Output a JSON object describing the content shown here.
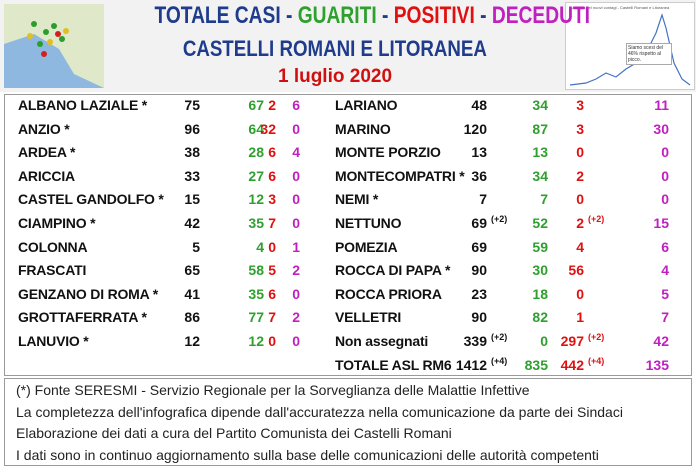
{
  "header": {
    "title_parts": [
      "TOTALE CASI",
      " - ",
      "GUARITI",
      " - ",
      "POSITIVI",
      " - ",
      "DECEDUTI"
    ],
    "subtitle": "CASTELLI ROMANI E LITORANEA",
    "date": "1 luglio 2020",
    "thumbnail_title": "La curva dei nuovi contagi - Castelli Romani e Litoranea",
    "thumbnail_note": "Siamo scesi del 46% rispetto al picco."
  },
  "table": {
    "left": [
      {
        "name": "ALBANO LAZIALE *",
        "totale": 75,
        "guariti": 67,
        "positivi": 2,
        "deceduti": 6
      },
      {
        "name": "ANZIO *",
        "totale": 96,
        "guariti": 64,
        "positivi": 32,
        "deceduti": 0
      },
      {
        "name": "ARDEA *",
        "totale": 38,
        "guariti": 28,
        "positivi": 6,
        "deceduti": 4
      },
      {
        "name": "ARICCIA",
        "totale": 33,
        "guariti": 27,
        "positivi": 6,
        "deceduti": 0
      },
      {
        "name": "CASTEL GANDOLFO *",
        "totale": 15,
        "guariti": 12,
        "positivi": 3,
        "deceduti": 0
      },
      {
        "name": "CIAMPINO *",
        "totale": 42,
        "guariti": 35,
        "positivi": 7,
        "deceduti": 0
      },
      {
        "name": "COLONNA",
        "totale": 5,
        "guariti": 4,
        "positivi": 0,
        "deceduti": 1
      },
      {
        "name": "FRASCATI",
        "totale": 65,
        "guariti": 58,
        "positivi": 5,
        "deceduti": 2
      },
      {
        "name": "GENZANO DI ROMA *",
        "totale": 41,
        "guariti": 35,
        "positivi": 6,
        "deceduti": 0
      },
      {
        "name": "GROTTAFERRATA *",
        "totale": 86,
        "guariti": 77,
        "positivi": 7,
        "deceduti": 2
      },
      {
        "name": "LANUVIO *",
        "totale": 12,
        "guariti": 12,
        "positivi": 0,
        "deceduti": 0
      }
    ],
    "right": [
      {
        "name": "LARIANO",
        "totale": 48,
        "guariti": 34,
        "positivi": 3,
        "deceduti": 11
      },
      {
        "name": "MARINO",
        "totale": 120,
        "guariti": 87,
        "positivi": 3,
        "deceduti": 30
      },
      {
        "name": "MONTE PORZIO",
        "totale": 13,
        "guariti": 13,
        "positivi": 0,
        "deceduti": 0
      },
      {
        "name": "MONTECOMPATRI *",
        "totale": 36,
        "guariti": 34,
        "positivi": 2,
        "deceduti": 0
      },
      {
        "name": "NEMI *",
        "totale": 7,
        "guariti": 7,
        "positivi": 0,
        "deceduti": 0
      },
      {
        "name": "NETTUNO",
        "totale": 69,
        "totale_note": "(+2)",
        "guariti": 52,
        "positivi": 2,
        "positivi_note": "(+2)",
        "deceduti": 15
      },
      {
        "name": "POMEZIA",
        "totale": 69,
        "guariti": 59,
        "positivi": 4,
        "deceduti": 6
      },
      {
        "name": "ROCCA DI PAPA *",
        "totale": 90,
        "guariti": 30,
        "positivi": 56,
        "deceduti": 4
      },
      {
        "name": "ROCCA PRIORA",
        "totale": 23,
        "guariti": 18,
        "positivi": 0,
        "deceduti": 5
      },
      {
        "name": "VELLETRI",
        "totale": 90,
        "guariti": 82,
        "positivi": 1,
        "deceduti": 7
      },
      {
        "name": "Non assegnati",
        "totale": 339,
        "totale_note": "(+2)",
        "guariti": 0,
        "positivi": 297,
        "positivi_note": "(+2)",
        "deceduti": 42
      },
      {
        "name": "TOTALE ASL RM6",
        "totale": 1412,
        "totale_note": "(+4)",
        "guariti": 835,
        "positivi": 442,
        "positivi_note": "(+4)",
        "deceduti": 135
      }
    ]
  },
  "footer": [
    "(*) Fonte SERESMI - Servizio Regionale per la Sorveglianza delle Malattie Infettive",
    "La completezza dell'infografica dipende dall'accuratezza nella comunicazione da parte dei Sindaci",
    "Elaborazione dei dati a cura del Partito Comunista dei Castelli Romani",
    "I dati sono in continuo aggiornamento sulla base delle comunicazioni delle autorità competenti"
  ]
}
